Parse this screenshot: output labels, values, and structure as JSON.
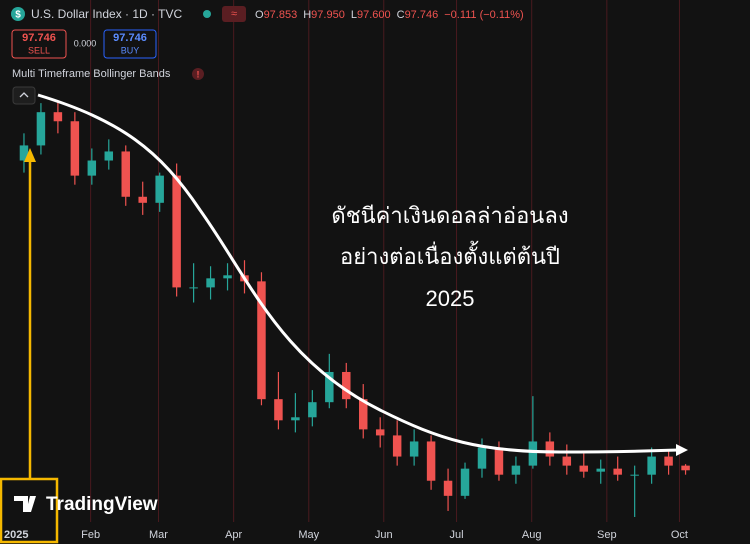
{
  "chart_data": {
    "type": "candlestick",
    "title": "U.S. Dollar Index · 1D · TVC",
    "ohlc_labels": [
      "O",
      "H",
      "L",
      "C"
    ],
    "ohlc_values": [
      "97.853",
      "97.950",
      "97.600",
      "97.746"
    ],
    "change": "−0.111 (−0.11%)",
    "sell_price": "97.746",
    "sell_label": "SELL",
    "spread": "0.000",
    "buy_price": "97.746",
    "buy_label": "BUY",
    "indicator": "Multi Timeframe Bollinger Bands",
    "annotation": [
      "ดัชนีค่าเงินดอลล่าอ่อนลง",
      "อย่างต่อเนื่องตั้งแต่ต้นปี",
      "2025"
    ],
    "watermark": "TradingView",
    "up_color": "#26a69a",
    "down_color": "#ef5350",
    "xlim": [
      -0.5,
      41
    ],
    "xticks": [
      {
        "value": 0,
        "label": "2025"
      },
      {
        "value": 4.43,
        "label": "Feb"
      },
      {
        "value": 8.43,
        "label": "Mar"
      },
      {
        "value": 12.86,
        "label": "Apr"
      },
      {
        "value": 17.29,
        "label": "May"
      },
      {
        "value": 21.71,
        "label": "Jun"
      },
      {
        "value": 26,
        "label": "Jul"
      },
      {
        "value": 30.43,
        "label": "Aug"
      },
      {
        "value": 34.86,
        "label": "Sep"
      },
      {
        "value": 39.14,
        "label": "Oct"
      }
    ],
    "ylim": [
      96.1,
      110.5
    ],
    "open": [
      108.0,
      108.5,
      109.6,
      109.3,
      107.5,
      108.0,
      108.3,
      106.8,
      106.6,
      107.5,
      103.8,
      103.8,
      104.1,
      104.2,
      104.0,
      100.1,
      99.4,
      99.5,
      100.0,
      101.0,
      100.1,
      99.1,
      98.9,
      98.2,
      98.7,
      97.4,
      96.9,
      97.8,
      98.5,
      97.6,
      97.9,
      98.7,
      98.2,
      97.9,
      97.7,
      97.8,
      97.6,
      97.6,
      98.2,
      97.9
    ],
    "high": [
      108.9,
      109.9,
      110.0,
      109.6,
      108.4,
      108.7,
      108.5,
      107.3,
      107.6,
      107.9,
      104.6,
      104.5,
      104.6,
      104.7,
      104.3,
      101.0,
      100.3,
      100.4,
      101.6,
      101.3,
      100.6,
      99.5,
      99.4,
      99.1,
      98.9,
      97.8,
      98.0,
      98.8,
      98.7,
      98.2,
      100.2,
      99.0,
      98.6,
      98.3,
      98.1,
      98.2,
      97.9,
      98.5,
      98.4,
      97.95
    ],
    "low": [
      107.6,
      108.2,
      108.9,
      107.2,
      107.2,
      107.7,
      106.5,
      106.2,
      106.3,
      103.5,
      103.3,
      103.4,
      103.7,
      103.6,
      99.9,
      99.1,
      99.0,
      99.2,
      99.8,
      99.8,
      98.8,
      98.5,
      97.9,
      97.9,
      97.1,
      96.4,
      96.8,
      97.5,
      97.4,
      97.3,
      97.8,
      97.9,
      97.6,
      97.5,
      97.3,
      97.4,
      96.2,
      97.3,
      97.6,
      97.6
    ],
    "close": [
      108.5,
      109.6,
      109.3,
      107.5,
      108.0,
      108.3,
      106.8,
      106.6,
      107.5,
      103.8,
      103.8,
      104.1,
      104.2,
      104.0,
      100.1,
      99.4,
      99.5,
      100.0,
      101.0,
      100.1,
      99.1,
      98.9,
      98.2,
      98.7,
      97.4,
      96.9,
      97.8,
      98.5,
      97.6,
      97.9,
      98.7,
      98.2,
      97.9,
      97.7,
      97.8,
      97.6,
      97.6,
      98.2,
      97.9,
      97.746
    ]
  }
}
